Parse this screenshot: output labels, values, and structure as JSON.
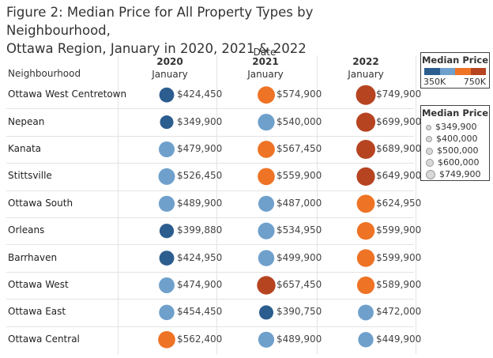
{
  "title_line1": "Figure 2: Median Price for All Property Types by Neighbourhood,",
  "title_line2": "Ottawa Region, January in 2020, 2021 & 2022",
  "column_header_group": "Date",
  "row_header": "Neighbourhood",
  "color_legend": {
    "title": "Median Price",
    "low_label": "350K",
    "high_label": "750K",
    "ramp_colors": [
      "#2c5d8f",
      "#6fa0cc",
      "#ee7325",
      "#b64421"
    ]
  },
  "size_legend": {
    "title": "Median Price",
    "items": [
      "$349,900",
      "$400,000",
      "$500,000",
      "$600,000",
      "$749,900"
    ]
  },
  "chart_data": {
    "type": "bubble-table",
    "title": "Figure 2: Median Price for All Property Types by Neighbourhood, Ottawa Region, January in 2020, 2021 & 2022",
    "columns": [
      {
        "year": "2020",
        "month": "January"
      },
      {
        "year": "2021",
        "month": "January"
      },
      {
        "year": "2022",
        "month": "January"
      }
    ],
    "rows": [
      {
        "neighbourhood": "Ottawa West Centretown",
        "values": [
          424450,
          574900,
          749900
        ],
        "labels": [
          "$424,450",
          "$574,900",
          "$749,900"
        ]
      },
      {
        "neighbourhood": "Nepean",
        "values": [
          349900,
          540000,
          699900
        ],
        "labels": [
          "$349,900",
          "$540,000",
          "$699,900"
        ]
      },
      {
        "neighbourhood": "Kanata",
        "values": [
          479900,
          567450,
          689900
        ],
        "labels": [
          "$479,900",
          "$567,450",
          "$689,900"
        ]
      },
      {
        "neighbourhood": "Stittsville",
        "values": [
          526450,
          559900,
          649900
        ],
        "labels": [
          "$526,450",
          "$559,900",
          "$649,900"
        ]
      },
      {
        "neighbourhood": "Ottawa South",
        "values": [
          489900,
          487000,
          624950
        ],
        "labels": [
          "$489,900",
          "$487,000",
          "$624,950"
        ]
      },
      {
        "neighbourhood": "Orleans",
        "values": [
          399880,
          534950,
          599900
        ],
        "labels": [
          "$399,880",
          "$534,950",
          "$599,900"
        ]
      },
      {
        "neighbourhood": "Barrhaven",
        "values": [
          424950,
          499900,
          599900
        ],
        "labels": [
          "$424,950",
          "$499,900",
          "$599,900"
        ]
      },
      {
        "neighbourhood": "Ottawa West",
        "values": [
          474900,
          657450,
          589900
        ],
        "labels": [
          "$474,900",
          "$657,450",
          "$589,900"
        ]
      },
      {
        "neighbourhood": "Ottawa East",
        "values": [
          454450,
          390750,
          472000
        ],
        "labels": [
          "$454,450",
          "$390,750",
          "$472,000"
        ]
      },
      {
        "neighbourhood": "Ottawa Central",
        "values": [
          562400,
          489900,
          449900
        ],
        "labels": [
          "$562,400",
          "$489,900",
          "$449,900"
        ]
      }
    ],
    "color_encoding": [
      {
        "value": 349900,
        "color": "#2c5d8f"
      },
      {
        "value": 424950,
        "color": "#2c5d8f"
      },
      {
        "value": 454450,
        "color": "#6fa0cc"
      },
      {
        "value": 540000,
        "color": "#6fa0cc"
      },
      {
        "value": 559900,
        "color": "#ee7325"
      },
      {
        "value": 624950,
        "color": "#ee7325"
      },
      {
        "value": 649900,
        "color": "#b64421"
      },
      {
        "value": 749900,
        "color": "#b64421"
      }
    ]
  }
}
